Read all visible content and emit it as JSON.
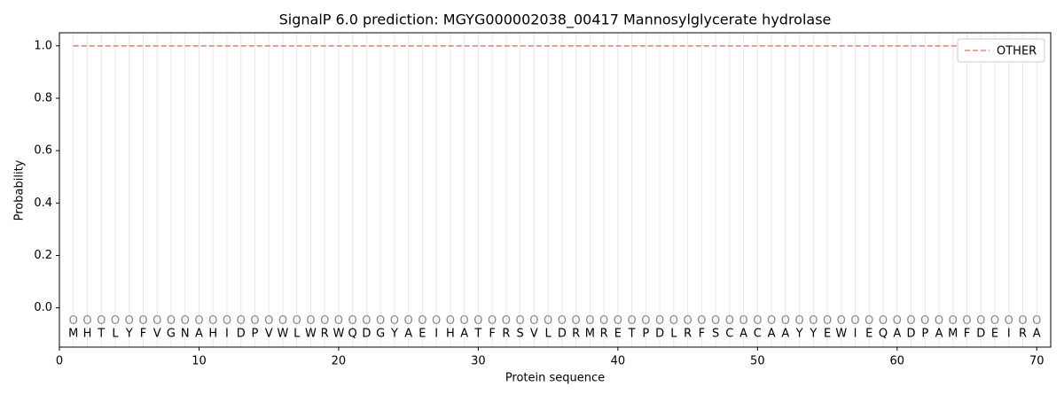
{
  "chart_data": {
    "type": "line",
    "title": "SignalP 6.0 prediction: MGYG000002038_00417 Mannosylglycerate hydrolase",
    "xlabel": "Protein sequence",
    "ylabel": "Probability",
    "x": [
      1,
      2,
      3,
      4,
      5,
      6,
      7,
      8,
      9,
      10,
      11,
      12,
      13,
      14,
      15,
      16,
      17,
      18,
      19,
      20,
      21,
      22,
      23,
      24,
      25,
      26,
      27,
      28,
      29,
      30,
      31,
      32,
      33,
      34,
      35,
      36,
      37,
      38,
      39,
      40,
      41,
      42,
      43,
      44,
      45,
      46,
      47,
      48,
      49,
      50,
      51,
      52,
      53,
      54,
      55,
      56,
      57,
      58,
      59,
      60,
      61,
      62,
      63,
      64,
      65,
      66,
      67,
      68,
      69,
      70
    ],
    "sequence": [
      "M",
      "H",
      "T",
      "L",
      "Y",
      "F",
      "V",
      "G",
      "N",
      "A",
      "H",
      "I",
      "D",
      "P",
      "V",
      "W",
      "L",
      "W",
      "R",
      "W",
      "Q",
      "D",
      "G",
      "Y",
      "A",
      "E",
      "I",
      "H",
      "A",
      "T",
      "F",
      "R",
      "S",
      "V",
      "L",
      "D",
      "R",
      "M",
      "R",
      "E",
      "T",
      "P",
      "D",
      "L",
      "R",
      "F",
      "S",
      "C",
      "A",
      "C",
      "A",
      "A",
      "Y",
      "Y",
      "E",
      "W",
      "I",
      "E",
      "Q",
      "A",
      "D",
      "P",
      "A",
      "M",
      "F",
      "D",
      "E",
      "I",
      "R",
      "A"
    ],
    "predictions": [
      "O",
      "O",
      "O",
      "O",
      "O",
      "O",
      "O",
      "O",
      "O",
      "O",
      "O",
      "O",
      "O",
      "O",
      "O",
      "O",
      "O",
      "O",
      "O",
      "O",
      "O",
      "O",
      "O",
      "O",
      "O",
      "O",
      "O",
      "O",
      "O",
      "O",
      "O",
      "O",
      "O",
      "O",
      "O",
      "O",
      "O",
      "O",
      "O",
      "O",
      "O",
      "O",
      "O",
      "O",
      "O",
      "O",
      "O",
      "O",
      "O",
      "O",
      "O",
      "O",
      "O",
      "O",
      "O",
      "O",
      "O",
      "O",
      "O",
      "O",
      "O",
      "O",
      "O",
      "O",
      "O",
      "O",
      "O",
      "O",
      "O",
      "O"
    ],
    "series": [
      {
        "name": "OTHER",
        "color": "#f08080",
        "dashed": true,
        "values": [
          1,
          1,
          1,
          1,
          1,
          1,
          1,
          1,
          1,
          1,
          1,
          1,
          1,
          1,
          1,
          1,
          1,
          1,
          1,
          1,
          1,
          1,
          1,
          1,
          1,
          1,
          1,
          1,
          1,
          1,
          1,
          1,
          1,
          1,
          1,
          1,
          1,
          1,
          1,
          1,
          1,
          1,
          1,
          1,
          1,
          1,
          1,
          1,
          1,
          1,
          1,
          1,
          1,
          1,
          1,
          1,
          1,
          1,
          1,
          1,
          1,
          1,
          1,
          1,
          1,
          1,
          1,
          1,
          1,
          1
        ]
      }
    ],
    "xlim": [
      0,
      71
    ],
    "xticks": [
      0,
      10,
      20,
      30,
      40,
      50,
      60,
      70
    ],
    "ylim": [
      -0.15,
      1.05
    ],
    "yticks": [
      {
        "value": 0,
        "label": "0.0"
      },
      0.2,
      0.4,
      0.6,
      0.8,
      {
        "value": 1,
        "label": "1.0"
      }
    ],
    "legend": "upper right"
  }
}
